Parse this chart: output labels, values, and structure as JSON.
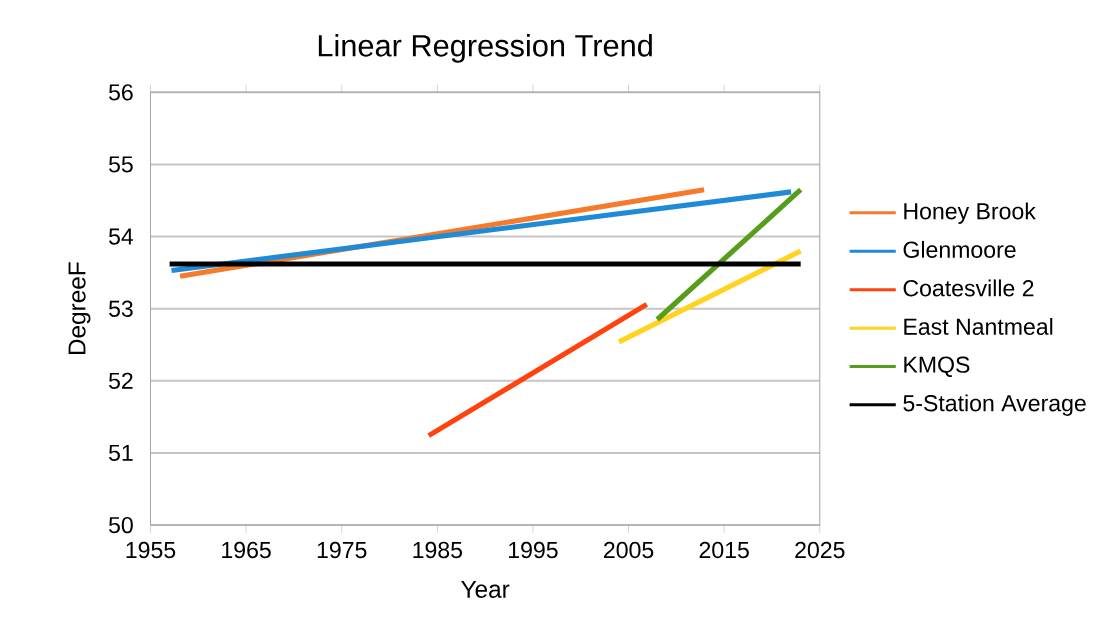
{
  "chart_data": {
    "type": "line",
    "title": "Linear Regression Trend",
    "xlabel": "Year",
    "ylabel": "DegreeF",
    "xlim": [
      1955,
      2025
    ],
    "ylim": [
      50,
      56
    ],
    "xticks": [
      1955,
      1965,
      1975,
      1985,
      1995,
      2005,
      2015,
      2025
    ],
    "yticks": [
      50,
      51,
      52,
      53,
      54,
      55,
      56
    ],
    "grid": "y",
    "legend": "right",
    "marker": "none",
    "line_style": "solid",
    "series": [
      {
        "name": "Honey Brook",
        "color": "#f57a2a",
        "x": [
          1958.1,
          2012.9
        ],
        "values": [
          53.45,
          54.65
        ]
      },
      {
        "name": "Glenmoore",
        "color": "#1f8ad6",
        "x": [
          1957.2,
          2022.0
        ],
        "values": [
          53.53,
          54.62
        ]
      },
      {
        "name": "Coatesville 2",
        "color": "#ff420e",
        "x": [
          1984.1,
          2006.9
        ],
        "values": [
          51.24,
          53.06
        ]
      },
      {
        "name": "East Nantmeal",
        "color": "#ffd320",
        "x": [
          2004.0,
          2023.0
        ],
        "values": [
          52.54,
          53.8
        ]
      },
      {
        "name": "KMQS",
        "color": "#579d1c",
        "x": [
          2008.0,
          2023.0
        ],
        "values": [
          52.85,
          54.65
        ]
      },
      {
        "name": "5-Station Average",
        "color": "#000000",
        "x": [
          1957.0,
          2023.0
        ],
        "values": [
          53.62,
          53.62
        ]
      }
    ]
  }
}
